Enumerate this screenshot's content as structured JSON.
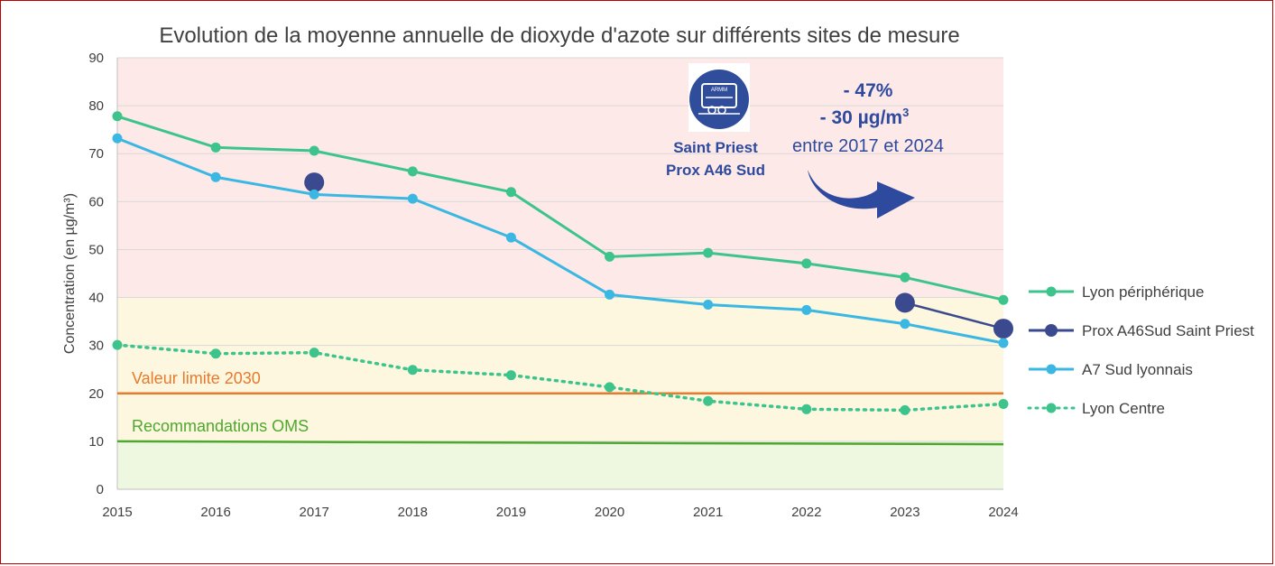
{
  "chart_data": {
    "type": "line",
    "title": "Evolution de la moyenne annuelle de dioxyde d'azote sur différents sites de mesure",
    "xlabel": "",
    "ylabel": "Concentration (en µg/m³)",
    "ylim": [
      0,
      90
    ],
    "yticks": [
      0,
      10,
      20,
      30,
      40,
      50,
      60,
      70,
      80,
      90
    ],
    "categories": [
      "2015",
      "2016",
      "2017",
      "2018",
      "2019",
      "2020",
      "2021",
      "2022",
      "2023",
      "2024"
    ],
    "bands": [
      {
        "from": 40,
        "to": 90,
        "color": "#fde9e7"
      },
      {
        "from": 10,
        "to": 40,
        "color": "#fdf7df"
      },
      {
        "from": 0,
        "to": 10,
        "color": "#eef8e0"
      }
    ],
    "series": [
      {
        "name": "Lyon périphérique",
        "style": "solid",
        "color": "#3cc48c",
        "values": [
          77.8,
          71.3,
          70.6,
          66.3,
          62.0,
          48.5,
          49.3,
          47.1,
          44.2,
          39.5
        ]
      },
      {
        "name": "Prox A46Sud Saint Priest",
        "style": "large-marker",
        "color": "#3b4a8f",
        "values": [
          null,
          null,
          64.0,
          null,
          null,
          null,
          null,
          null,
          38.9,
          33.5
        ]
      },
      {
        "name": "A7 Sud lyonnais",
        "style": "solid",
        "color": "#3ab7e3",
        "values": [
          73.2,
          65.1,
          61.5,
          60.6,
          52.5,
          40.6,
          38.5,
          37.4,
          34.5,
          30.5
        ]
      },
      {
        "name": "Lyon Centre",
        "style": "dotted",
        "color": "#3cc48c",
        "values": [
          30.1,
          28.3,
          28.5,
          24.9,
          23.8,
          21.3,
          18.4,
          16.7,
          16.5,
          17.8
        ]
      }
    ],
    "reference_lines": [
      {
        "label": "Valeur limite 2030",
        "value": 20,
        "color": "#e87a2e"
      },
      {
        "label": "Recommandations OMS",
        "value": 10,
        "value_end": 9.4,
        "color": "#4ea72e"
      }
    ],
    "annotations": {
      "site_line1": "Saint Priest",
      "site_line2": "Prox A46 Sud",
      "percent": "- 47%",
      "amount": "-  30 µg/m",
      "amount_exp": "3",
      "period": "entre 2017 et 2024",
      "badge_text": "ARMM"
    }
  },
  "colors": {
    "frame": "#c00000",
    "grid": "#d9d9d9",
    "arrow": "#2e4a9e",
    "annotation_text": "#2e4a9e"
  }
}
